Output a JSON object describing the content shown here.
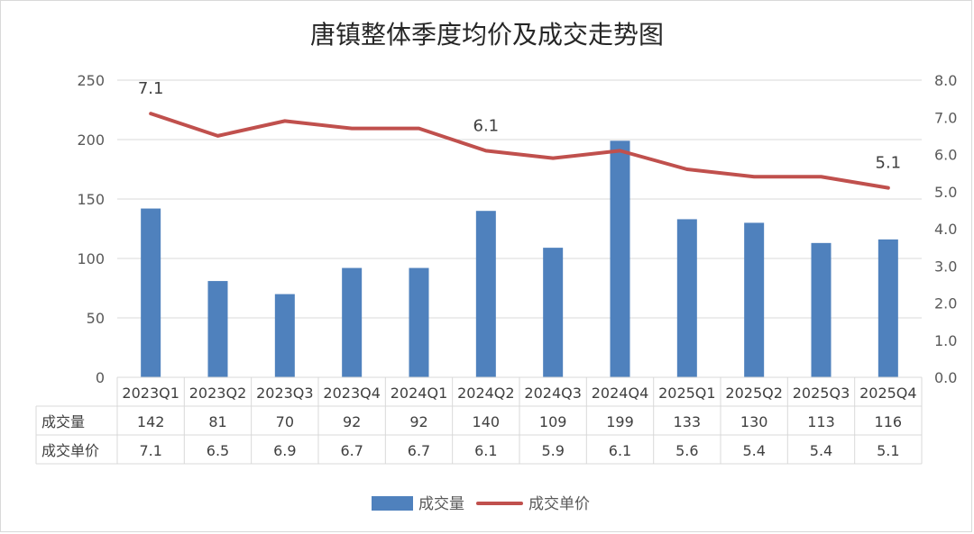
{
  "chart_data": {
    "type": "bar+line",
    "title": "唐镇整体季度均价及成交走势图",
    "categories": [
      "2023Q1",
      "2023Q2",
      "2023Q3",
      "2023Q4",
      "2024Q1",
      "2024Q2",
      "2024Q3",
      "2024Q4",
      "2025Q1",
      "2025Q2",
      "2025Q3",
      "2025Q4"
    ],
    "series": [
      {
        "name": "成交量",
        "type": "bar",
        "axis": "left",
        "color": "#4f81bd",
        "values": [
          142,
          81,
          70,
          92,
          92,
          140,
          109,
          199,
          133,
          130,
          113,
          116
        ]
      },
      {
        "name": "成交单价",
        "type": "line",
        "axis": "right",
        "color": "#c0504d",
        "values": [
          7.1,
          6.5,
          6.9,
          6.7,
          6.7,
          6.1,
          5.9,
          6.1,
          5.6,
          5.4,
          5.4,
          5.1
        ]
      }
    ],
    "left_axis": {
      "min": 0,
      "max": 250,
      "step": 50,
      "ticks": [
        "0",
        "50",
        "100",
        "150",
        "200",
        "250"
      ]
    },
    "right_axis": {
      "min": 0,
      "max": 8,
      "step": 1,
      "ticks": [
        "0.0",
        "1.0",
        "2.0",
        "3.0",
        "4.0",
        "5.0",
        "6.0",
        "7.0",
        "8.0"
      ]
    },
    "line_labels": [
      {
        "index": 0,
        "text": "7.1"
      },
      {
        "index": 5,
        "text": "6.1"
      },
      {
        "index": 11,
        "text": "5.1"
      }
    ],
    "data_table": {
      "rows": [
        {
          "label": "成交量",
          "values": [
            "142",
            "81",
            "70",
            "92",
            "92",
            "140",
            "109",
            "199",
            "133",
            "130",
            "113",
            "116"
          ]
        },
        {
          "label": "成交单价",
          "values": [
            "7.1",
            "6.5",
            "6.9",
            "6.7",
            "6.7",
            "6.1",
            "5.9",
            "6.1",
            "5.6",
            "5.4",
            "5.4",
            "5.1"
          ]
        }
      ]
    },
    "grid": true,
    "legend_position": "bottom"
  }
}
